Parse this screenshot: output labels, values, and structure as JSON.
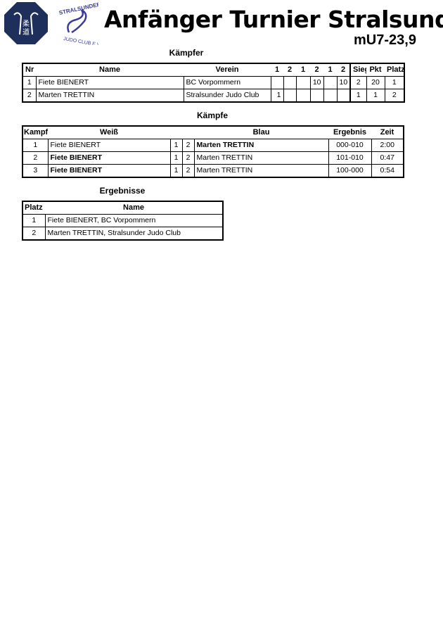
{
  "header": {
    "title": "Anfänger Turnier Stralsund",
    "category": "mU7-23,9",
    "logos": [
      {
        "name": "judo-octagon-logo",
        "text": "Judo im Norden",
        "color": "#1f2f5c"
      },
      {
        "name": "stralsunder-judo-club-logo",
        "text": "STRALSUNDER JUDO CLUB E.V.",
        "color": "#3a3a9a"
      }
    ]
  },
  "kaempfer": {
    "title": "Kämpfer",
    "columns": [
      "Nr",
      "Name",
      "Verein",
      "1",
      "2",
      "1",
      "2",
      "1",
      "2",
      "Siege",
      "Pkt",
      "Platz"
    ],
    "rows": [
      [
        "1",
        "Fiete BIENERT",
        "BC Vorpommern",
        "",
        "",
        "",
        "10",
        "",
        "10",
        "2",
        "20",
        "1"
      ],
      [
        "2",
        "Marten TRETTIN",
        "Stralsunder Judo Club",
        "1",
        "",
        "",
        "",
        "",
        "",
        "1",
        "1",
        "2"
      ]
    ]
  },
  "kaempfe": {
    "title": "Kämpfe",
    "columns": [
      "Kampf",
      "Weiß",
      "",
      "",
      "Blau",
      "Ergebnis",
      "Zeit"
    ],
    "rows": [
      {
        "cells": [
          "1",
          "Fiete BIENERT",
          "1",
          "2",
          "Marten TRETTIN",
          "000-010",
          "2:00"
        ],
        "winner": "blau"
      },
      {
        "cells": [
          "2",
          "Fiete BIENERT",
          "1",
          "2",
          "Marten TRETTIN",
          "101-010",
          "0:47"
        ],
        "winner": "weiss"
      },
      {
        "cells": [
          "3",
          "Fiete BIENERT",
          "1",
          "2",
          "Marten TRETTIN",
          "100-000",
          "0:54"
        ],
        "winner": "weiss"
      }
    ]
  },
  "ergebnisse": {
    "title": "Ergebnisse",
    "columns": [
      "Platz",
      "Name"
    ],
    "rows": [
      [
        "1",
        "Fiete BIENERT, BC Vorpommern"
      ],
      [
        "2",
        "Marten TRETTIN, Stralsunder Judo Club"
      ]
    ]
  }
}
